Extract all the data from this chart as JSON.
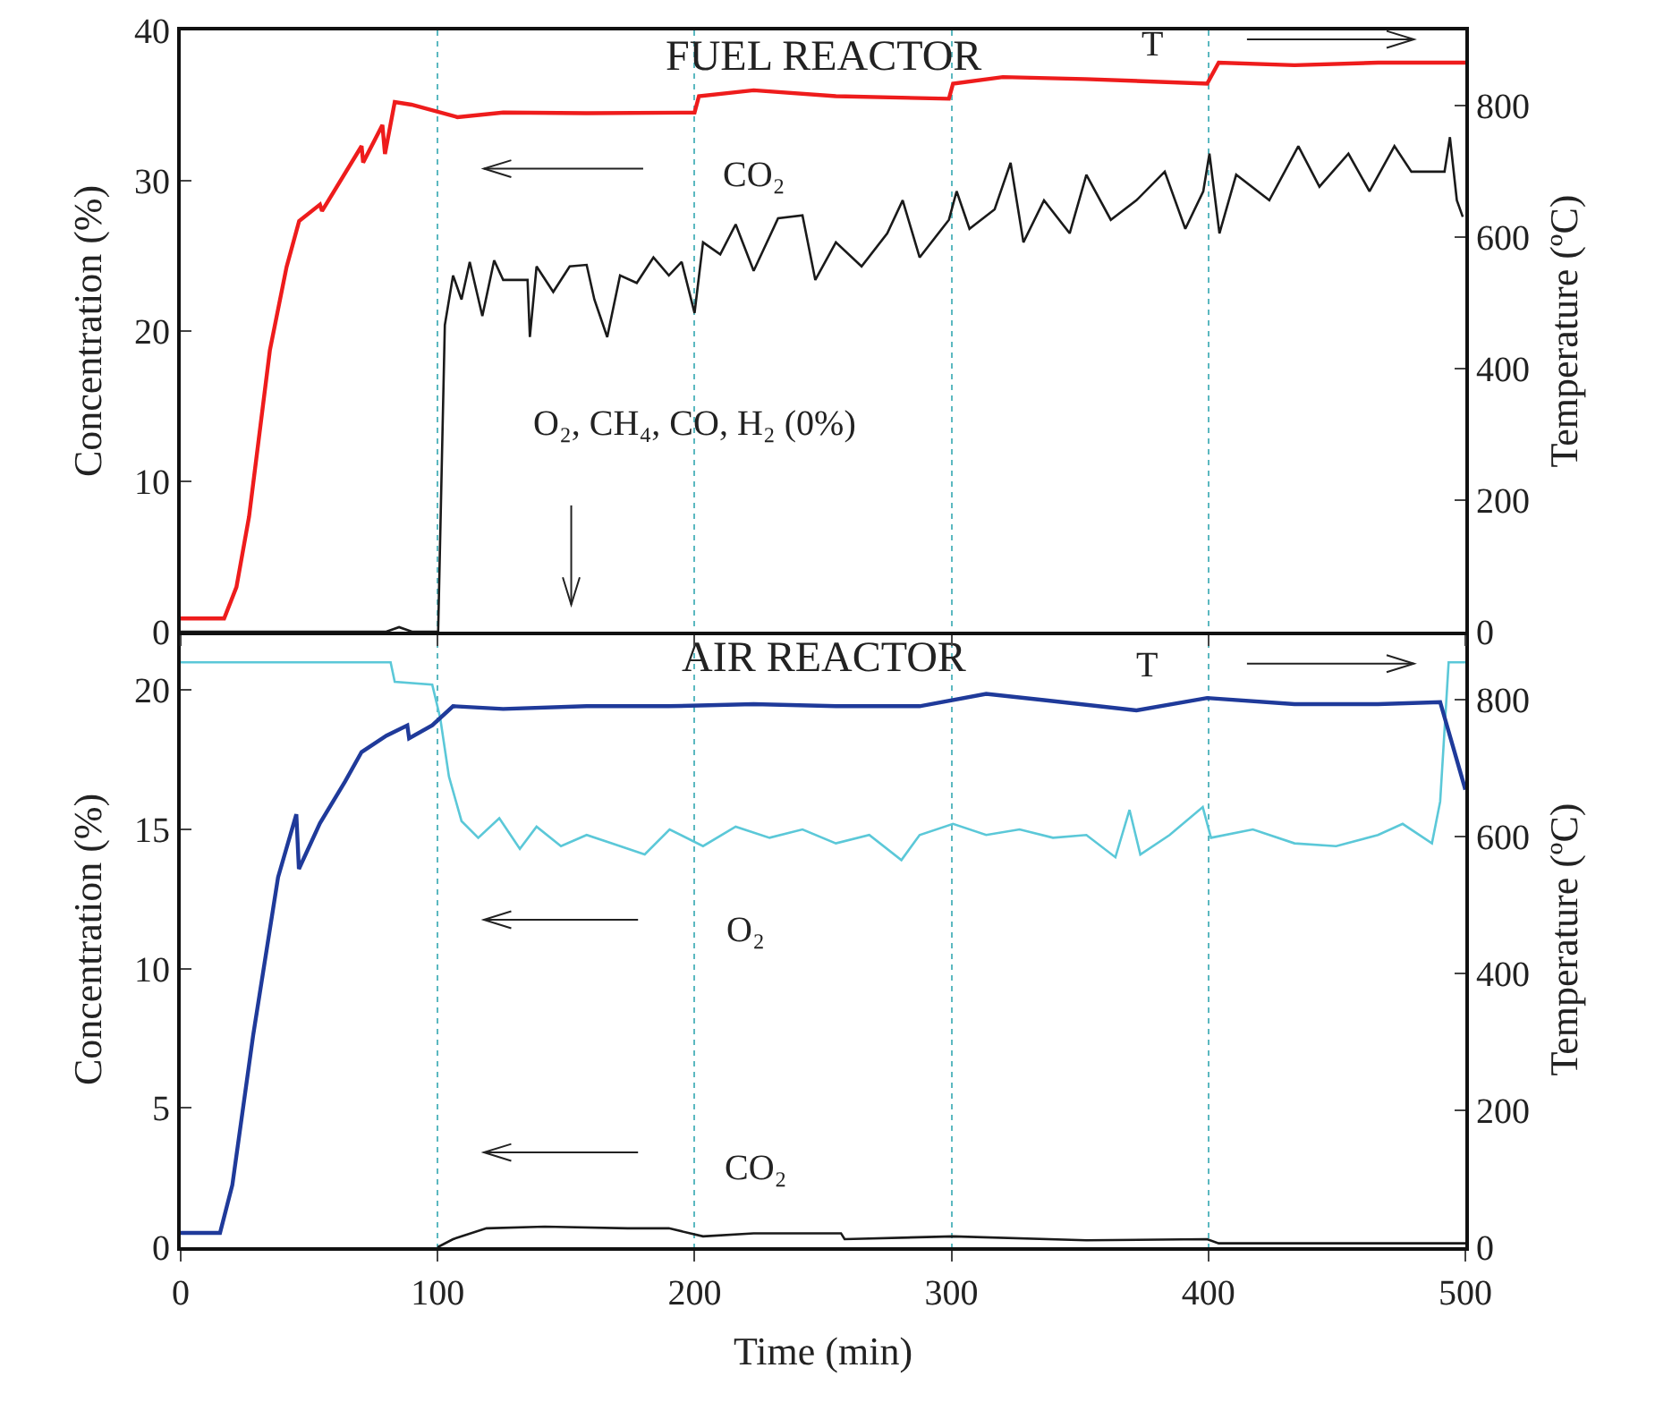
{
  "chart_data": [
    {
      "type": "line",
      "title": "FUEL REACTOR",
      "ylabel": "Concentration (%)",
      "y2label": "Temperature (ºC)",
      "xlim": [
        0,
        500
      ],
      "xticks": [
        0,
        100,
        200,
        300,
        400,
        500
      ],
      "ylim": [
        0,
        40
      ],
      "yticks": [
        0,
        10,
        20,
        30,
        40
      ],
      "y2lim": [
        0,
        915
      ],
      "y2ticks": [
        0,
        200,
        400,
        600,
        800
      ],
      "grid": "x",
      "tick_labels": "y",
      "annotations": [
        "O₂, CH₄, CO, H₂ (0%)"
      ],
      "series": [
        {
          "name": "CO₂",
          "color": "#1a1a1a",
          "axis": "y",
          "x": [
            0,
            80,
            85,
            90,
            100.2,
            102.8,
            106,
            109.3,
            112.5,
            117.4,
            122,
            125.5,
            135,
            135.9,
            138.5,
            145,
            151.4,
            158,
            161,
            166,
            171,
            177.5,
            184,
            190,
            195,
            200,
            203.3,
            210,
            216,
            223,
            232.5,
            242,
            247,
            255,
            265,
            275,
            281,
            287.6,
            299,
            302,
            307,
            316.8,
            323,
            328,
            336,
            346,
            352.5,
            362,
            372,
            383,
            391,
            398,
            400.4,
            404.3,
            410.8,
            423.7,
            435,
            443.2,
            454.5,
            462.7,
            472.4,
            479,
            491.9,
            494,
            496.7,
            499
          ],
          "values": [
            0,
            0,
            0.3,
            0,
            0,
            20.4,
            23.7,
            22.1,
            24.6,
            21.0,
            24.7,
            23.4,
            23.4,
            19.6,
            24.3,
            22.6,
            24.3,
            24.4,
            22.1,
            19.6,
            23.7,
            23.2,
            24.9,
            23.7,
            24.6,
            21.2,
            25.9,
            25.1,
            27.1,
            24.0,
            27.5,
            27.7,
            23.4,
            25.9,
            24.3,
            26.5,
            28.7,
            24.9,
            27.4,
            29.3,
            26.8,
            28.1,
            31.2,
            25.9,
            28.7,
            26.5,
            30.4,
            27.4,
            28.7,
            30.6,
            26.8,
            29.3,
            31.8,
            26.5,
            30.4,
            28.7,
            32.3,
            29.6,
            31.8,
            29.3,
            32.3,
            30.6,
            30.6,
            32.9,
            28.7,
            27.6
          ]
        },
        {
          "name": "T",
          "color": "#ee1c1c",
          "axis": "y2",
          "x": [
            0,
            16.9,
            21.7,
            26.6,
            34.7,
            41.2,
            46.1,
            54.2,
            55,
            70.4,
            71,
            78.5,
            79.5,
            83.3,
            89.8,
            107.7,
            125.5,
            158,
            200,
            201.7,
            223,
            255,
            299,
            300.6,
            320,
            352,
            399.5,
            404,
            433.5,
            466,
            500
          ],
          "values": [
            20,
            20,
            68,
            175,
            428,
            555,
            625,
            650,
            640,
            739,
            714,
            771,
            727,
            806,
            802,
            783,
            790,
            789,
            790,
            815,
            824,
            815,
            811,
            834,
            844,
            841,
            834,
            866,
            862,
            866,
            866
          ]
        }
      ]
    },
    {
      "type": "line",
      "title": "AIR REACTOR",
      "xlabel": "Time (min)",
      "ylabel": "Concentration (%)",
      "y2label": "Temperature (ºC)",
      "xlim": [
        0,
        500
      ],
      "xticks": [
        0,
        100,
        200,
        300,
        400,
        500
      ],
      "ylim": [
        0,
        22.1
      ],
      "yticks": [
        0,
        5,
        10,
        15,
        20
      ],
      "y2lim": [
        0,
        900
      ],
      "y2ticks": [
        0,
        200,
        400,
        600,
        800
      ],
      "grid": "x",
      "series": [
        {
          "name": "O₂",
          "color": "#5bc8d8",
          "axis": "y",
          "x": [
            0,
            81.7,
            83.3,
            97.9,
            101,
            104.4,
            109.3,
            115.8,
            124,
            132,
            138.5,
            148,
            158,
            167.7,
            180.6,
            190.3,
            203.3,
            216,
            229.2,
            242,
            255,
            268,
            280.5,
            287.6,
            300.6,
            313.5,
            326.5,
            339.5,
            352.5,
            363.8,
            369.3,
            373.5,
            384.9,
            397.8,
            401,
            417.3,
            433.5,
            449.7,
            466,
            475.6,
            487,
            490.2,
            493.5,
            500
          ],
          "values": [
            21.0,
            21.0,
            20.3,
            20.2,
            19.0,
            16.9,
            15.3,
            14.7,
            15.4,
            14.3,
            15.1,
            14.4,
            14.8,
            14.5,
            14.1,
            15.0,
            14.4,
            15.1,
            14.7,
            15.0,
            14.5,
            14.8,
            13.9,
            14.8,
            15.2,
            14.8,
            15.0,
            14.7,
            14.8,
            14.0,
            15.7,
            14.1,
            14.8,
            15.8,
            14.7,
            15.0,
            14.5,
            14.4,
            14.8,
            15.2,
            14.5,
            16.0,
            21.0,
            21.0
          ]
        },
        {
          "name": "T",
          "color": "#1f3a9a",
          "axis": "y2",
          "x": [
            0,
            15.3,
            20.1,
            28.2,
            37.9,
            45,
            46,
            54.2,
            64,
            70.4,
            80.1,
            88.2,
            88.9,
            97.9,
            106,
            125.5,
            158,
            190,
            223,
            255,
            287.6,
            313.5,
            336,
            372,
            399.5,
            433.5,
            466,
            490.2,
            500
          ],
          "values": [
            21,
            21,
            91,
            310,
            541,
            633,
            553,
            620,
            681,
            724,
            748,
            763,
            744,
            763,
            791,
            787,
            791,
            791,
            794,
            791,
            791,
            809,
            800,
            785,
            803,
            794,
            794,
            797,
            669
          ]
        },
        {
          "name": "CO₂",
          "color": "#1a1a1a",
          "axis": "y",
          "x": [
            100,
            106,
            119,
            141.7,
            174,
            190,
            203.3,
            223,
            257,
            258.4,
            300.6,
            352.5,
            399.5,
            404,
            500
          ],
          "values": [
            0,
            0.29,
            0.68,
            0.74,
            0.68,
            0.68,
            0.39,
            0.5,
            0.5,
            0.29,
            0.39,
            0.25,
            0.29,
            0.14,
            0.14
          ]
        }
      ]
    }
  ]
}
